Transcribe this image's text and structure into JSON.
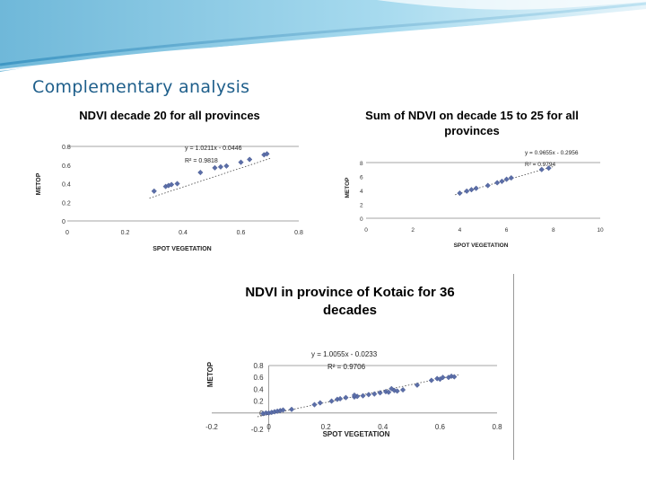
{
  "slide": {
    "title": "Complementary analysis",
    "accent_color": "#1f5f8b"
  },
  "chart_data": [
    {
      "type": "scatter",
      "title": "NDVI decade 20 for all provinces",
      "xlabel": "SPOT VEGETATION",
      "ylabel": "METOP",
      "xlim": [
        0,
        0.8
      ],
      "ylim": [
        0,
        0.8
      ],
      "xticks": [
        "0",
        "0.2",
        "0.4",
        "0.6",
        "0.8"
      ],
      "yticks": [
        "0",
        "0.2",
        "0.4",
        "0.6",
        "0.8"
      ],
      "trendline": {
        "slope": 1.0211,
        "intercept": -0.0446
      },
      "equation": "y = 1.0211x - 0.0446",
      "r2_label": "R² = 0.9818",
      "marker_color": "#5b6ea8",
      "x": [
        0.3,
        0.34,
        0.35,
        0.36,
        0.38,
        0.46,
        0.51,
        0.53,
        0.55,
        0.6,
        0.63,
        0.68,
        0.69
      ],
      "y": [
        0.32,
        0.37,
        0.38,
        0.39,
        0.4,
        0.52,
        0.57,
        0.58,
        0.59,
        0.63,
        0.66,
        0.71,
        0.72
      ]
    },
    {
      "type": "scatter",
      "title": "Sum of NDVI on decade 15 to 25 for all provinces",
      "xlabel": "SPOT VEGETATION",
      "ylabel": "METOP",
      "xlim": [
        0,
        10
      ],
      "ylim": [
        0,
        8
      ],
      "xticks": [
        "0",
        "2",
        "4",
        "6",
        "8",
        "10"
      ],
      "yticks": [
        "0",
        "2",
        "4",
        "6",
        "8"
      ],
      "trendline": {
        "slope": 0.9655,
        "intercept": -0.2956
      },
      "equation": "y = 0.9655x - 0.2956",
      "r2_label": "R² = 0.9794",
      "marker_color": "#5b6ea8",
      "x": [
        4.0,
        4.3,
        4.5,
        4.7,
        5.2,
        5.6,
        5.8,
        6.0,
        6.2,
        7.5,
        7.8
      ],
      "y": [
        3.6,
        3.9,
        4.1,
        4.3,
        4.7,
        5.1,
        5.3,
        5.6,
        5.8,
        7.0,
        7.2
      ]
    },
    {
      "type": "scatter",
      "title": "NDVI in province of Kotaic for 36 decades",
      "xlabel": "SPOT VEGETATION",
      "ylabel": "METOP",
      "xlim": [
        -0.2,
        0.8
      ],
      "ylim": [
        -0.2,
        0.8
      ],
      "xticks": [
        "-0.2",
        "0",
        "0.2",
        "0.4",
        "0.6",
        "0.8"
      ],
      "yticks": [
        "-0.2",
        "0",
        "0.2",
        "0.4",
        "0.6",
        "0.8"
      ],
      "trendline": {
        "slope": 1.0055,
        "intercept": -0.0233
      },
      "equation": "y = 1.0055x - 0.0233",
      "r2_label": "R² = 0.9706",
      "marker_color": "#5b6ea8",
      "x": [
        -0.02,
        -0.01,
        0.0,
        0.01,
        0.02,
        0.03,
        0.04,
        0.05,
        0.08,
        0.16,
        0.18,
        0.22,
        0.24,
        0.27,
        0.3,
        0.31,
        0.33,
        0.35,
        0.37,
        0.39,
        0.41,
        0.42,
        0.44,
        0.45,
        0.47,
        0.52,
        0.57,
        0.59,
        0.6,
        0.61,
        0.63,
        0.64,
        0.65,
        0.3,
        0.25,
        0.43
      ],
      "y": [
        -0.01,
        0.0,
        0.0,
        0.01,
        0.02,
        0.03,
        0.04,
        0.05,
        0.06,
        0.14,
        0.17,
        0.2,
        0.23,
        0.26,
        0.27,
        0.28,
        0.29,
        0.31,
        0.32,
        0.34,
        0.36,
        0.35,
        0.38,
        0.37,
        0.39,
        0.47,
        0.55,
        0.58,
        0.57,
        0.6,
        0.6,
        0.62,
        0.61,
        0.3,
        0.24,
        0.41
      ]
    }
  ]
}
